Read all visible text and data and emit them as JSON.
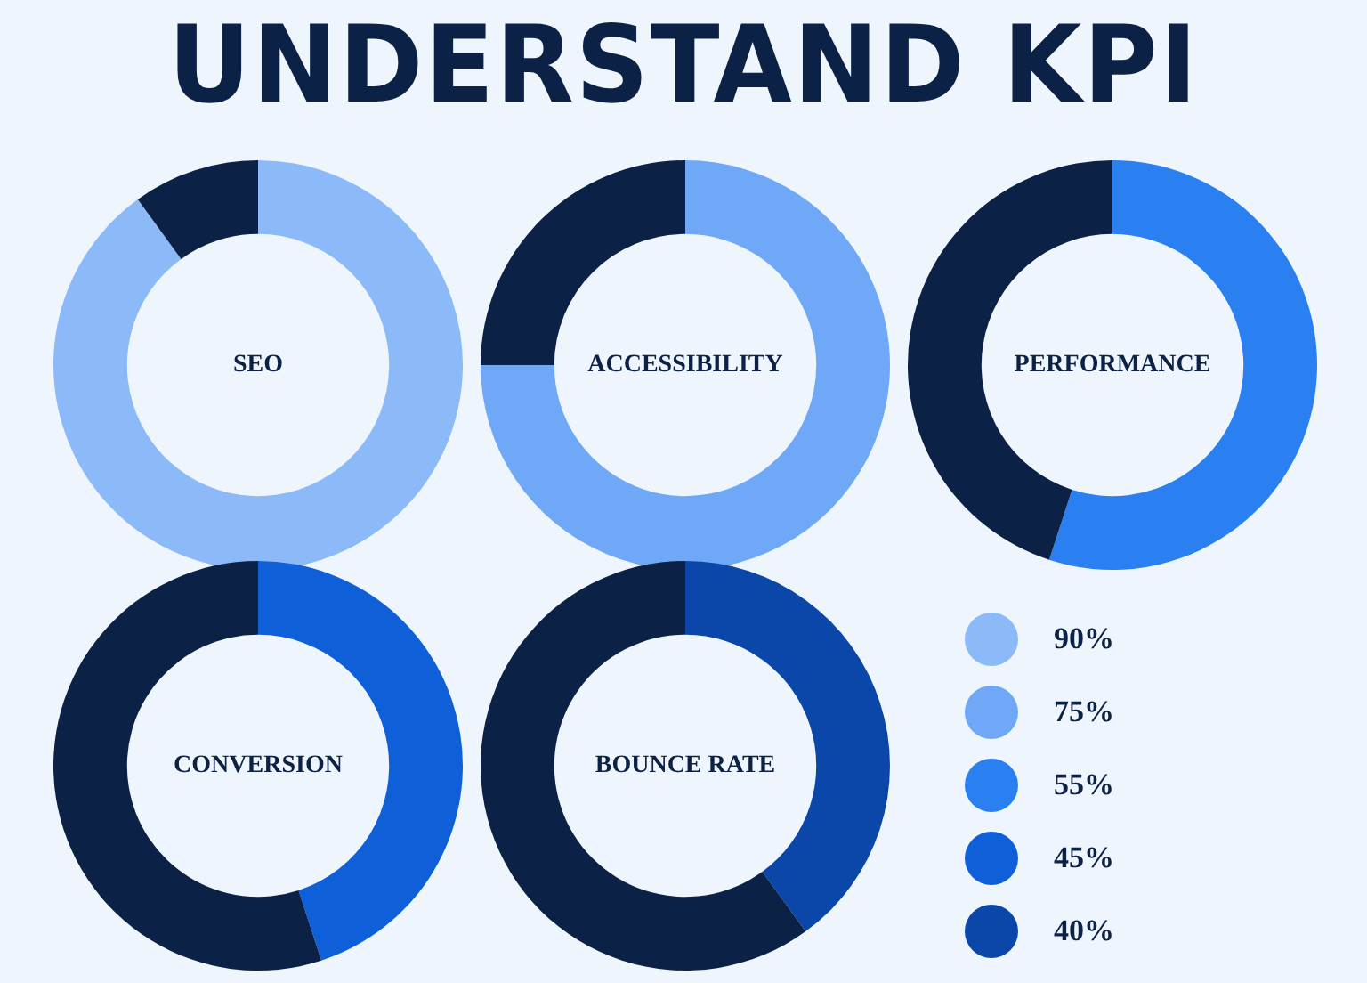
{
  "chart_data": [
    {
      "type": "other",
      "title": "UNDERSTAND KPI"
    },
    {
      "type": "donut",
      "title": "SEO",
      "categories": [
        "90%",
        null
      ],
      "values": [
        90,
        10
      ],
      "colors": [
        "#8cb9f8",
        "#0b2146"
      ]
    },
    {
      "type": "donut",
      "title": "ACCESSIBILITY",
      "categories": [
        "75%",
        null
      ],
      "values": [
        75,
        25
      ],
      "colors": [
        "#6fa8f6",
        "#0b2146"
      ]
    },
    {
      "type": "donut",
      "title": "PERFORMANCE",
      "categories": [
        "55%",
        null
      ],
      "values": [
        55,
        45
      ],
      "colors": [
        "#2b80f1",
        "#0b2146"
      ]
    },
    {
      "type": "donut",
      "title": "CONVERSION",
      "categories": [
        "45%",
        null
      ],
      "values": [
        45,
        55
      ],
      "colors": [
        "#0f5fd8",
        "#0b2146"
      ]
    },
    {
      "type": "donut",
      "title": "BOUNCE RATE",
      "categories": [
        "40%",
        null
      ],
      "values": [
        40,
        60
      ],
      "colors": [
        "#0a47a8",
        "#0b2146"
      ]
    }
  ]
}
